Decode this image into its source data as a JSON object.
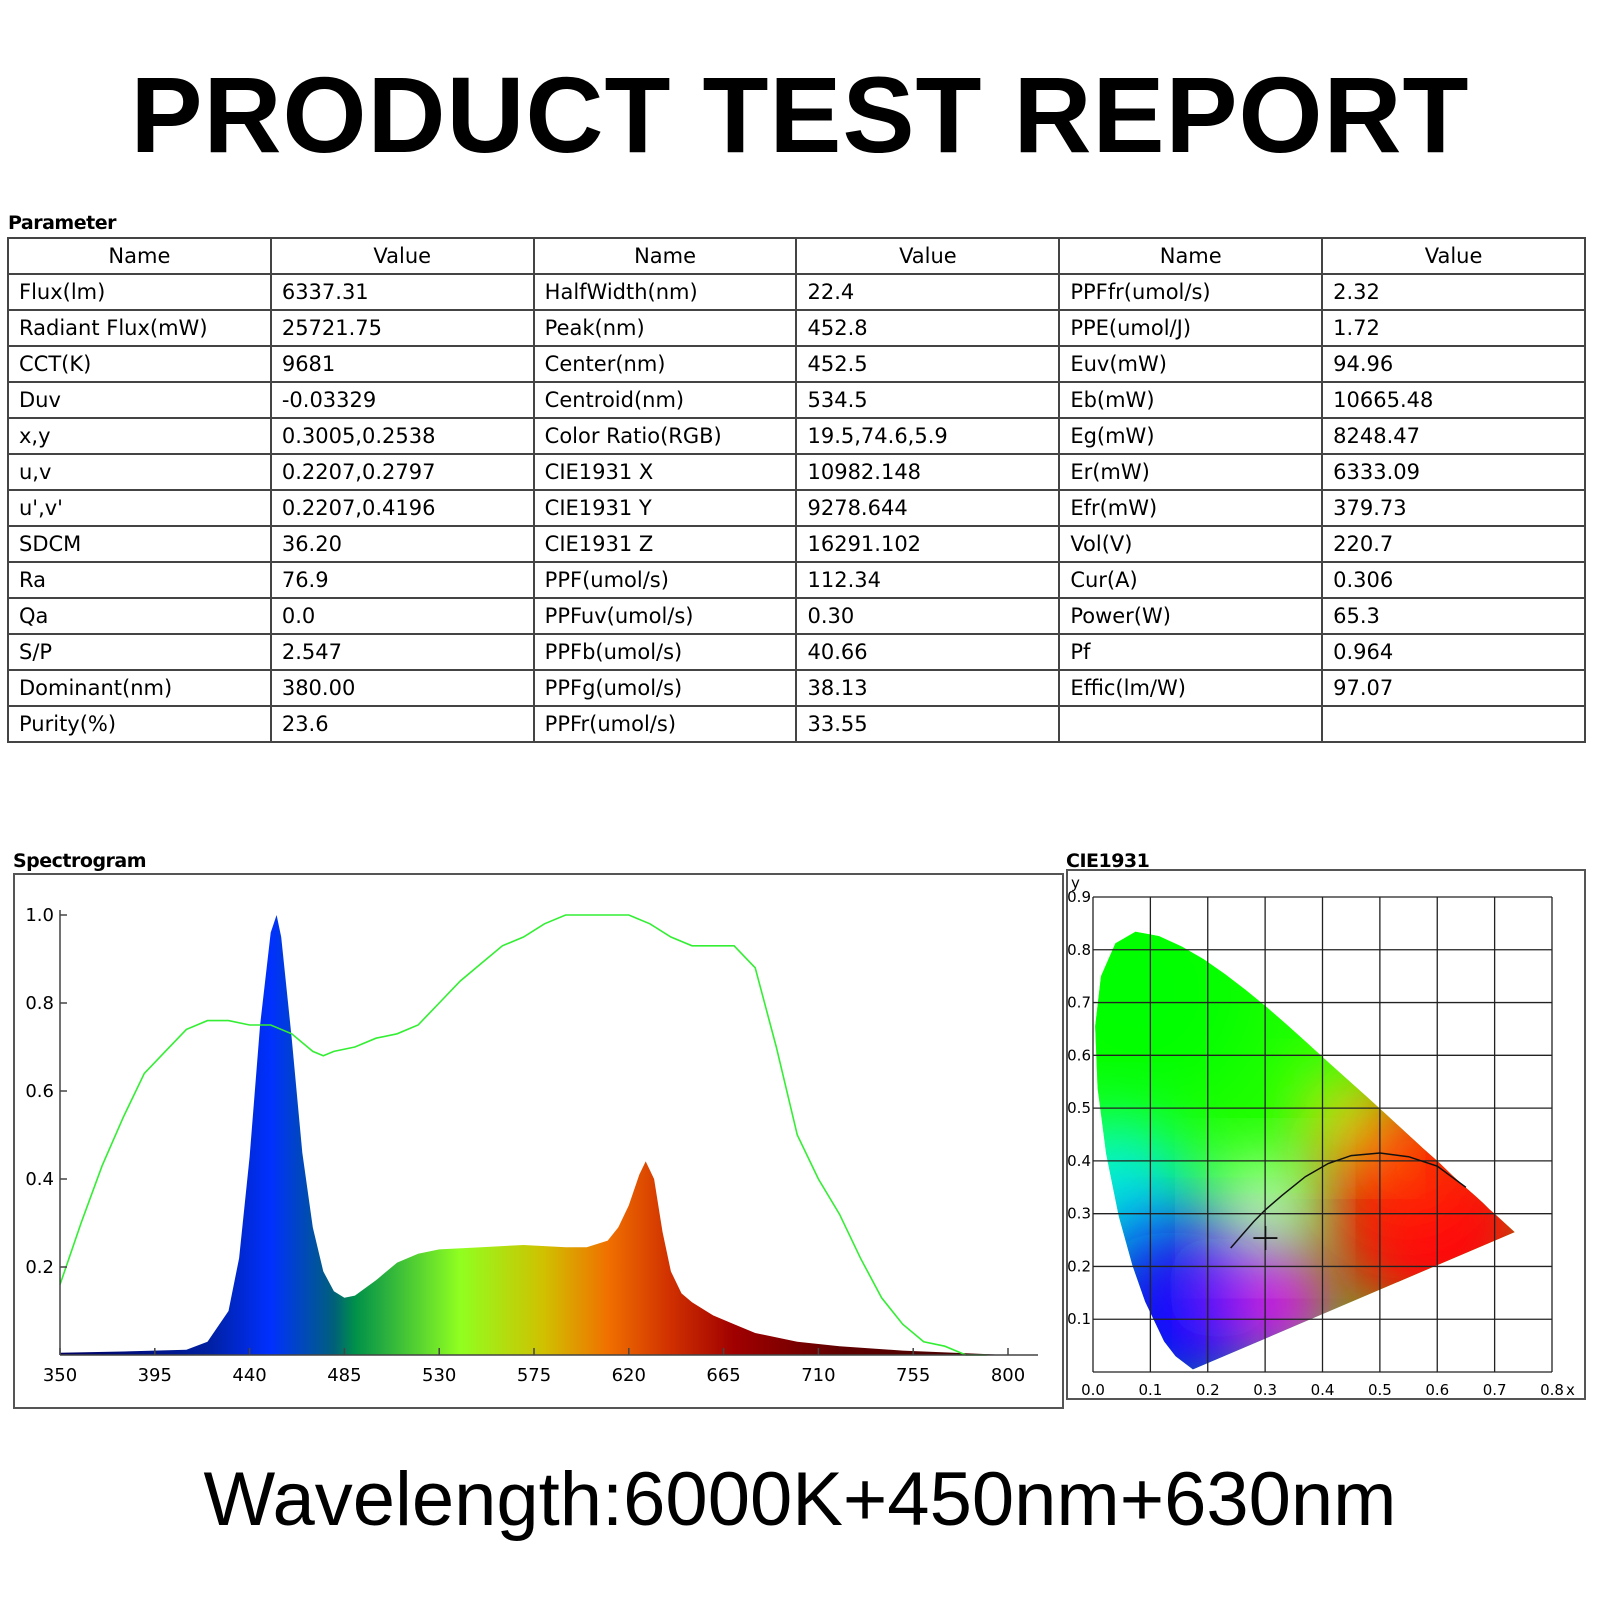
{
  "title": "PRODUCT TEST REPORT",
  "parameter_section": {
    "label": "Parameter",
    "headers": [
      "Name",
      "Value",
      "Name",
      "Value",
      "Name",
      "Value"
    ],
    "rows": [
      [
        "Flux(lm)",
        "6337.31",
        "HalfWidth(nm)",
        "22.4",
        "PPFfr(umol/s)",
        "2.32"
      ],
      [
        "Radiant Flux(mW)",
        "25721.75",
        "Peak(nm)",
        "452.8",
        "PPE(umol/J)",
        "1.72"
      ],
      [
        "CCT(K)",
        "9681",
        "Center(nm)",
        "452.5",
        "Euv(mW)",
        "94.96"
      ],
      [
        "Duv",
        "-0.03329",
        "Centroid(nm)",
        "534.5",
        "Eb(mW)",
        "10665.48"
      ],
      [
        "x,y",
        "0.3005,0.2538",
        "Color Ratio(RGB)",
        "19.5,74.6,5.9",
        "Eg(mW)",
        "8248.47"
      ],
      [
        "u,v",
        "0.2207,0.2797",
        "CIE1931 X",
        "10982.148",
        "Er(mW)",
        "6333.09"
      ],
      [
        "u',v'",
        "0.2207,0.4196",
        "CIE1931 Y",
        "9278.644",
        "Efr(mW)",
        "379.73"
      ],
      [
        "SDCM",
        "36.20",
        "CIE1931 Z",
        "16291.102",
        "Vol(V)",
        "220.7"
      ],
      [
        "Ra",
        "76.9",
        "PPF(umol/s)",
        "112.34",
        "Cur(A)",
        "0.306"
      ],
      [
        "Qa",
        "0.0",
        "PPFuv(umol/s)",
        "0.30",
        "Power(W)",
        "65.3"
      ],
      [
        "S/P",
        "2.547",
        "PPFb(umol/s)",
        "40.66",
        "Pf",
        "0.964"
      ],
      [
        "Dominant(nm)",
        "380.00",
        "PPFg(umol/s)",
        "38.13",
        "Effic(lm/W)",
        "97.07"
      ],
      [
        "Purity(%)",
        "23.6",
        "PPFr(umol/s)",
        "33.55",
        "",
        ""
      ]
    ]
  },
  "chart_data": [
    {
      "type": "area",
      "title": "Spectrogram",
      "xlim": [
        350,
        800
      ],
      "ylim": [
        0,
        1.0
      ],
      "x_ticks": [
        "350",
        "395",
        "440",
        "485",
        "530",
        "575",
        "620",
        "665",
        "710",
        "755",
        "800"
      ],
      "y_ticks": [
        "0.2",
        "0.4",
        "0.6",
        "0.8",
        "1.0"
      ],
      "grid": false,
      "series": [
        {
          "style": "spectrum-filled",
          "x": [
            350,
            380,
            410,
            420,
            430,
            435,
            440,
            445,
            450,
            452.8,
            455,
            460,
            465,
            470,
            475,
            480,
            485,
            490,
            500,
            510,
            520,
            530,
            550,
            570,
            590,
            600,
            610,
            615,
            620,
            625,
            628,
            632,
            636,
            640,
            645,
            650,
            660,
            670,
            680,
            700,
            720,
            750,
            780,
            800
          ],
          "y": [
            0.005,
            0.008,
            0.012,
            0.03,
            0.1,
            0.22,
            0.45,
            0.75,
            0.96,
            1.0,
            0.95,
            0.72,
            0.46,
            0.29,
            0.19,
            0.145,
            0.13,
            0.135,
            0.17,
            0.21,
            0.23,
            0.24,
            0.245,
            0.25,
            0.245,
            0.245,
            0.26,
            0.29,
            0.34,
            0.41,
            0.44,
            0.4,
            0.28,
            0.19,
            0.14,
            0.12,
            0.09,
            0.07,
            0.05,
            0.03,
            0.02,
            0.01,
            0.004,
            0.0
          ]
        },
        {
          "style": "line",
          "color": "#33ee33",
          "x": [
            350,
            360,
            370,
            380,
            390,
            400,
            410,
            420,
            430,
            440,
            450,
            460,
            470,
            475,
            480,
            490,
            500,
            510,
            520,
            530,
            540,
            550,
            560,
            570,
            580,
            590,
            620,
            630,
            640,
            650,
            670,
            680,
            690,
            700,
            710,
            720,
            730,
            740,
            750,
            760,
            770,
            780,
            790
          ],
          "y": [
            0.16,
            0.3,
            0.43,
            0.54,
            0.64,
            0.69,
            0.74,
            0.76,
            0.76,
            0.75,
            0.75,
            0.73,
            0.69,
            0.68,
            0.69,
            0.7,
            0.72,
            0.73,
            0.75,
            0.8,
            0.85,
            0.89,
            0.93,
            0.95,
            0.98,
            1.0,
            1.0,
            0.98,
            0.95,
            0.93,
            0.93,
            0.88,
            0.7,
            0.5,
            0.4,
            0.32,
            0.22,
            0.13,
            0.07,
            0.03,
            0.02,
            0.0,
            0.0
          ]
        }
      ],
      "spectrum_colors": [
        "#000060",
        "#0020a0",
        "#0030ff",
        "#00607a",
        "#00904a",
        "#90ff20",
        "#d0c000",
        "#f07000",
        "#d03000",
        "#a00000",
        "#600000",
        "#400000"
      ]
    },
    {
      "type": "scatter",
      "title": "CIE1931",
      "xlabel": "x",
      "ylabel": "y",
      "xlim": [
        0,
        0.8
      ],
      "ylim": [
        0,
        0.9
      ],
      "x_ticks": [
        "0.0",
        "0.1",
        "0.2",
        "0.3",
        "0.4",
        "0.5",
        "0.6",
        "0.7",
        "0.8"
      ],
      "y_ticks": [
        "0.1",
        "0.2",
        "0.3",
        "0.4",
        "0.5",
        "0.6",
        "0.7",
        "0.8",
        "0.9"
      ],
      "grid": true,
      "spectral_locus": [
        [
          0.1741,
          0.005
        ],
        [
          0.144,
          0.03
        ],
        [
          0.124,
          0.058
        ],
        [
          0.091,
          0.133
        ],
        [
          0.069,
          0.201
        ],
        [
          0.045,
          0.295
        ],
        [
          0.023,
          0.413
        ],
        [
          0.008,
          0.538
        ],
        [
          0.0039,
          0.655
        ],
        [
          0.014,
          0.75
        ],
        [
          0.039,
          0.812
        ],
        [
          0.074,
          0.834
        ],
        [
          0.115,
          0.826
        ],
        [
          0.155,
          0.806
        ],
        [
          0.193,
          0.782
        ],
        [
          0.23,
          0.754
        ],
        [
          0.266,
          0.724
        ],
        [
          0.302,
          0.692
        ],
        [
          0.337,
          0.659
        ],
        [
          0.373,
          0.624
        ],
        [
          0.408,
          0.589
        ],
        [
          0.444,
          0.554
        ],
        [
          0.479,
          0.52
        ],
        [
          0.512,
          0.487
        ],
        [
          0.544,
          0.455
        ],
        [
          0.575,
          0.424
        ],
        [
          0.603,
          0.397
        ],
        [
          0.627,
          0.372
        ],
        [
          0.648,
          0.351
        ],
        [
          0.666,
          0.334
        ],
        [
          0.68,
          0.32
        ],
        [
          0.691,
          0.308
        ],
        [
          0.7,
          0.3
        ],
        [
          0.735,
          0.265
        ]
      ],
      "planckian_locus": [
        [
          0.24,
          0.235
        ],
        [
          0.26,
          0.26
        ],
        [
          0.28,
          0.285
        ],
        [
          0.3,
          0.307
        ],
        [
          0.33,
          0.335
        ],
        [
          0.37,
          0.37
        ],
        [
          0.41,
          0.395
        ],
        [
          0.45,
          0.41
        ],
        [
          0.5,
          0.415
        ],
        [
          0.55,
          0.408
        ],
        [
          0.6,
          0.39
        ],
        [
          0.65,
          0.35
        ]
      ],
      "measured_point": [
        0.3005,
        0.2538
      ]
    }
  ],
  "footer": "Wavelength:6000K+450nm+630nm"
}
